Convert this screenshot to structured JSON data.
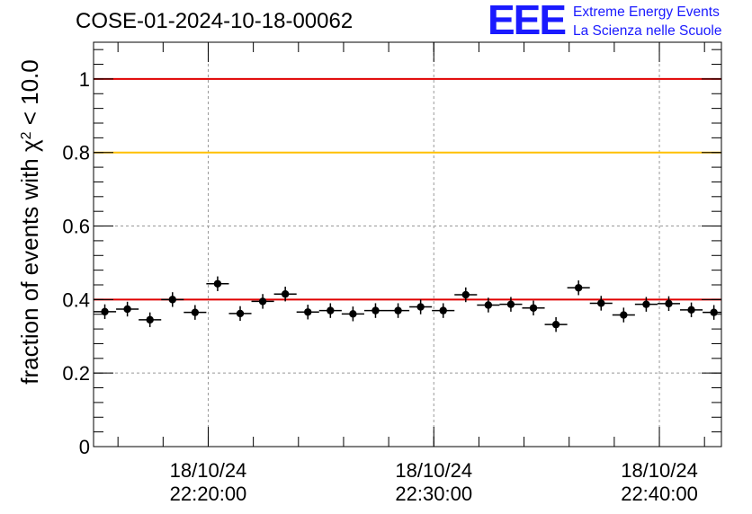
{
  "title": "COSE-01-2024-10-18-00062",
  "logo": {
    "mark": "EEE",
    "line1": "Extreme Energy Events",
    "line2": "La Scienza nelle Scuole"
  },
  "colors": {
    "reference_line_high": "#e00000",
    "reference_line_warn": "#ffc000",
    "reference_line_low": "#e00000",
    "markers": "#000000",
    "grid": "#999999",
    "logo": "#1a1aff"
  },
  "chart_data": {
    "type": "scatter",
    "title": "COSE-01-2024-10-18-00062",
    "ylabel": "fraction of events with χ² < 10.0",
    "xlabel": "",
    "ylim": [
      0,
      1.1
    ],
    "yticks": [
      0,
      0.2,
      0.4,
      0.6,
      0.8,
      1
    ],
    "ytick_labels": [
      "0",
      "0.2",
      "0.4",
      "0.6",
      "0.8",
      "1"
    ],
    "xlim": [
      "18/10/24 22:14:55",
      "18/10/24 22:42:45"
    ],
    "xticks": [
      {
        "date": "18/10/24",
        "time": "22:20:00"
      },
      {
        "date": "18/10/24",
        "time": "22:30:00"
      },
      {
        "date": "18/10/24",
        "time": "22:40:00"
      }
    ],
    "grid": true,
    "reference_lines": [
      {
        "y": 1.0,
        "color": "#e00000"
      },
      {
        "y": 0.8,
        "color": "#ffc000"
      },
      {
        "y": 0.4,
        "color": "#e00000"
      }
    ],
    "bin_width_seconds": 60,
    "points": [
      {
        "x": "22:15:25",
        "y": 0.367,
        "yerr": 0.02
      },
      {
        "x": "22:16:25",
        "y": 0.374,
        "yerr": 0.02
      },
      {
        "x": "22:17:25",
        "y": 0.345,
        "yerr": 0.02
      },
      {
        "x": "22:18:25",
        "y": 0.4,
        "yerr": 0.02
      },
      {
        "x": "22:19:25",
        "y": 0.365,
        "yerr": 0.02
      },
      {
        "x": "22:20:25",
        "y": 0.443,
        "yerr": 0.02
      },
      {
        "x": "22:21:25",
        "y": 0.362,
        "yerr": 0.02
      },
      {
        "x": "22:22:25",
        "y": 0.395,
        "yerr": 0.02
      },
      {
        "x": "22:23:25",
        "y": 0.415,
        "yerr": 0.02
      },
      {
        "x": "22:24:25",
        "y": 0.366,
        "yerr": 0.02
      },
      {
        "x": "22:25:25",
        "y": 0.37,
        "yerr": 0.02
      },
      {
        "x": "22:26:25",
        "y": 0.361,
        "yerr": 0.02
      },
      {
        "x": "22:27:25",
        "y": 0.37,
        "yerr": 0.02
      },
      {
        "x": "22:28:25",
        "y": 0.37,
        "yerr": 0.02
      },
      {
        "x": "22:29:25",
        "y": 0.38,
        "yerr": 0.02
      },
      {
        "x": "22:30:25",
        "y": 0.37,
        "yerr": 0.02
      },
      {
        "x": "22:31:25",
        "y": 0.413,
        "yerr": 0.02
      },
      {
        "x": "22:32:25",
        "y": 0.385,
        "yerr": 0.02
      },
      {
        "x": "22:33:25",
        "y": 0.387,
        "yerr": 0.02
      },
      {
        "x": "22:34:25",
        "y": 0.377,
        "yerr": 0.02
      },
      {
        "x": "22:35:25",
        "y": 0.332,
        "yerr": 0.02
      },
      {
        "x": "22:36:25",
        "y": 0.432,
        "yerr": 0.02
      },
      {
        "x": "22:37:25",
        "y": 0.39,
        "yerr": 0.02
      },
      {
        "x": "22:38:25",
        "y": 0.358,
        "yerr": 0.02
      },
      {
        "x": "22:39:25",
        "y": 0.387,
        "yerr": 0.02
      },
      {
        "x": "22:40:25",
        "y": 0.389,
        "yerr": 0.02
      },
      {
        "x": "22:41:25",
        "y": 0.372,
        "yerr": 0.02
      },
      {
        "x": "22:42:25",
        "y": 0.365,
        "yerr": 0.02
      }
    ]
  }
}
